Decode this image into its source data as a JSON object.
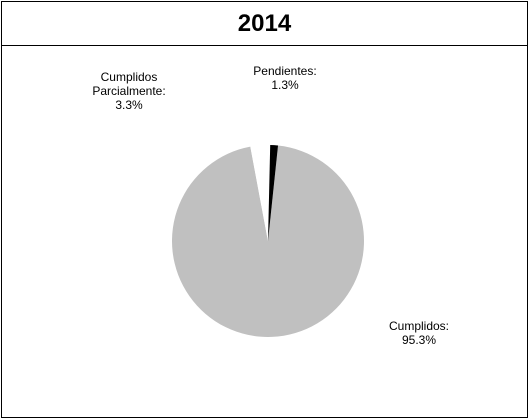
{
  "chart_data": {
    "type": "pie",
    "title": "2014",
    "slices": [
      {
        "label": "Cumplidos:",
        "value": 95.3,
        "value_label": "95.3%",
        "color": "#c0c0c0"
      },
      {
        "label": "Cumplidos Parcialmente:",
        "label_lines": [
          "Cumplidos",
          "Parcialmente:"
        ],
        "value": 3.3,
        "value_label": "3.3%",
        "color": "#ffffff"
      },
      {
        "label": "Pendientes:",
        "value": 1.3,
        "value_label": "1.3%",
        "color": "#000000"
      }
    ],
    "legend": "none"
  }
}
